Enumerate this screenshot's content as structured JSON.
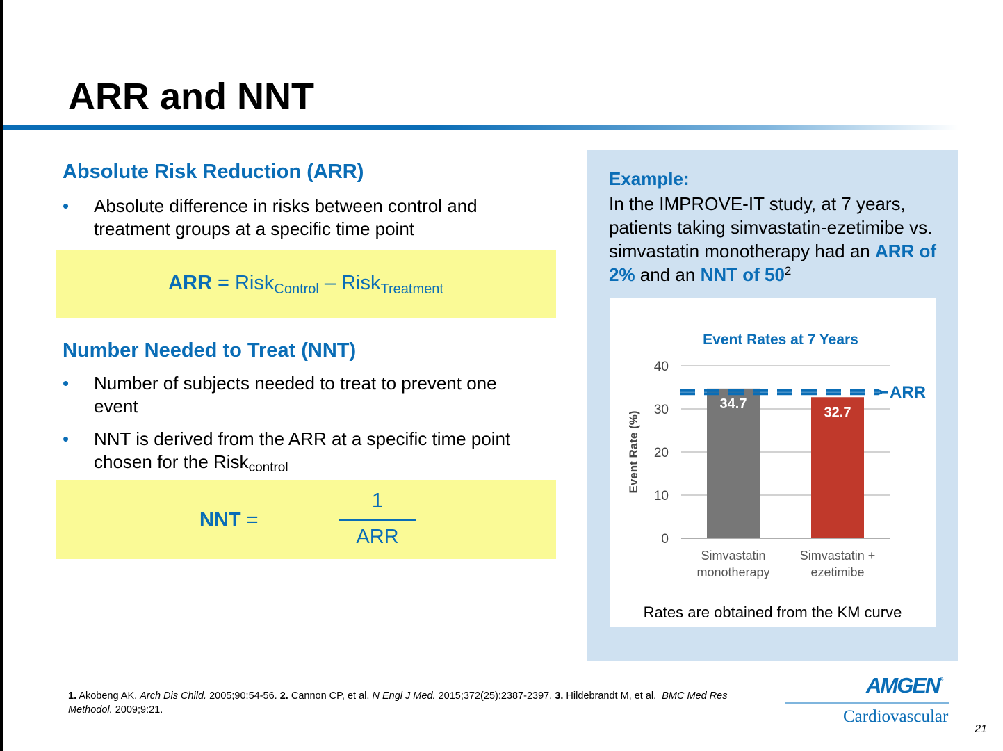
{
  "slide": {
    "title": "ARR and NNT",
    "page_number": "21",
    "colors": {
      "accent": "#0a6db6",
      "formula_bg": "#fafa96",
      "panel_bg": "#cfe1f1",
      "bar_monotherapy": "#777777",
      "bar_combination": "#c0392b"
    }
  },
  "arr_section": {
    "heading": "Absolute Risk Reduction (ARR)",
    "bullet": "Absolute difference in risks between control and treatment groups at a specific time point",
    "formula": {
      "label": "ARR",
      "equals": " = ",
      "risk": "Risk",
      "control_sub": "Control",
      "minus": " – ",
      "treatment_sub": "Treatment"
    }
  },
  "nnt_section": {
    "heading": "Number Needed to Treat (NNT)",
    "bullet1": "Number of subjects needed to treat to prevent one event",
    "bullet2": "NNT is derived from the ARR at a specific time point chosen for the Risk",
    "bullet2_sub": "control",
    "formula": {
      "label": "NNT",
      "equals": " =",
      "numerator": "1",
      "denominator": "ARR"
    }
  },
  "example": {
    "title": "Example:",
    "text_before": "In the IMPROVE-IT study, at 7 years, patients taking simvastatin-ezetimibe vs. simvastatin monotherapy had an ",
    "arr_highlight": "ARR of 2%",
    "text_middle": " and an ",
    "nnt_highlight": "NNT of 50",
    "superscript": "2",
    "chart_note": "Rates are obtained from the KM curve"
  },
  "chart_data": {
    "type": "bar",
    "title": "Event Rates at 7 Years",
    "ylabel": "Event Rate (%)",
    "xlabel": "",
    "categories": [
      "Simvastatin monotherapy",
      "Simvastatin + ezetimibe"
    ],
    "category_lines": [
      [
        "Simvastatin",
        "monotherapy"
      ],
      [
        "Simvastatin +",
        "ezetimibe"
      ]
    ],
    "values": [
      34.7,
      32.7
    ],
    "data_labels": [
      "34.7",
      "32.7"
    ],
    "ylim": [
      0,
      40
    ],
    "yticks": [
      0,
      10,
      20,
      30,
      40
    ],
    "grid": true,
    "annotation": "ARR",
    "bar_colors": [
      "#777777",
      "#c0392b"
    ]
  },
  "references": {
    "r1_num": "1.",
    "r1_author": " Akobeng AK. ",
    "r1_journal": "Arch Dis Child.",
    "r1_rest": " 2005;90:54-56. ",
    "r2_num": "2.",
    "r2_author": " Cannon CP, et al. ",
    "r2_journal": "N Engl J Med.",
    "r2_rest": " 2015;372(25):2387-2397. ",
    "r3_num": "3.",
    "r3_author": " Hildebrandt M, et al.  ",
    "r3_journal": "BMC Med Res Methodol.",
    "r3_rest": " 2009;9:21."
  },
  "logo": {
    "brand": "AMGEN",
    "registered": "®",
    "division": "Cardiovascular"
  }
}
